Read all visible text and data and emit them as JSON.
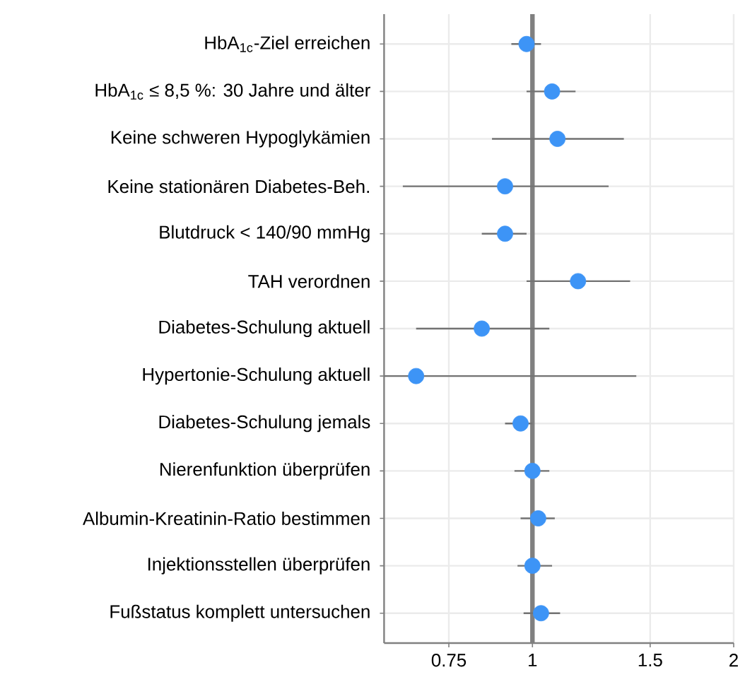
{
  "chart_data": {
    "type": "scatter",
    "orientation": "horizontal",
    "log": "x",
    "marker": "circle",
    "grid": true,
    "color": "#3d94f6",
    "categories": [
      "HbA$_{1c}$-Ziel erreichen",
      "HbA$_{1c}$ ≤ 8,5 %: 30 Jahre und älter",
      "Keine schweren Hypoglykämien",
      "Keine stationären Diabetes-Beh.",
      "Blutdruck < 140/90 mmHg",
      "TAH verordnen",
      "Diabetes-Schulung aktuell",
      "Hypertonie-Schulung aktuell",
      "Diabetes-Schulung jemals",
      "Nierenfunktion überprüfen",
      "Albumin-Kreatinin-Ratio bestimmen",
      "Injektionsstellen überprüfen",
      "Fußstatus komplett untersuchen"
    ],
    "values": [
      0.98,
      1.07,
      1.09,
      0.91,
      0.91,
      1.17,
      0.84,
      0.67,
      0.96,
      1.0,
      1.02,
      1.0,
      1.03
    ],
    "errors": [
      [
        0.93,
        1.03
      ],
      [
        0.98,
        1.16
      ],
      [
        0.87,
        1.37
      ],
      [
        0.64,
        1.3
      ],
      [
        0.84,
        0.98
      ],
      [
        0.98,
        1.4
      ],
      [
        0.67,
        1.06
      ],
      [
        0.6,
        1.43
      ],
      [
        0.91,
        1.0
      ],
      [
        0.94,
        1.06
      ],
      [
        0.96,
        1.08
      ],
      [
        0.95,
        1.07
      ],
      [
        0.97,
        1.1
      ]
    ],
    "xlim": [
      0.6,
      2
    ],
    "xticks": [
      0.75,
      1,
      1.5,
      2
    ],
    "ref_lines": [
      {
        "axis": "x",
        "value": 1,
        "color": "#808080"
      }
    ]
  }
}
